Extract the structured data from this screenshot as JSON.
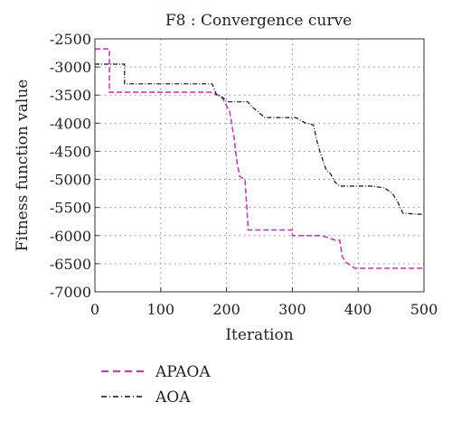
{
  "chart_data": {
    "type": "line",
    "title": "F8 : Convergence curve",
    "xlabel": "Iteration",
    "ylabel": "Fitness function value",
    "xlim": [
      0,
      500
    ],
    "ylim": [
      -7000,
      -2500
    ],
    "xticks": [
      0,
      100,
      200,
      300,
      400,
      500
    ],
    "yticks": [
      -2500,
      -3000,
      -3500,
      -4000,
      -4500,
      -5000,
      -5500,
      -6000,
      -6500,
      -7000
    ],
    "grid": true,
    "legend_position": "bottom-left, below the plot",
    "series": [
      {
        "name": "APAOA",
        "color": "#c040b0",
        "style": "dashed",
        "points": [
          [
            0,
            -2680
          ],
          [
            22,
            -2680
          ],
          [
            22,
            -3450
          ],
          [
            175,
            -3450
          ],
          [
            192,
            -3520
          ],
          [
            205,
            -3800
          ],
          [
            212,
            -4300
          ],
          [
            216,
            -4700
          ],
          [
            220,
            -4950
          ],
          [
            228,
            -5000
          ],
          [
            233,
            -5900
          ],
          [
            300,
            -5900
          ],
          [
            300,
            -6000
          ],
          [
            345,
            -6000
          ],
          [
            365,
            -6080
          ],
          [
            372,
            -6080
          ],
          [
            376,
            -6380
          ],
          [
            382,
            -6480
          ],
          [
            395,
            -6580
          ],
          [
            500,
            -6580
          ]
        ]
      },
      {
        "name": "AOA",
        "color": "#111111",
        "style": "dashdot",
        "points": [
          [
            0,
            -2950
          ],
          [
            45,
            -2950
          ],
          [
            45,
            -3300
          ],
          [
            178,
            -3300
          ],
          [
            185,
            -3500
          ],
          [
            195,
            -3550
          ],
          [
            200,
            -3620
          ],
          [
            232,
            -3620
          ],
          [
            240,
            -3720
          ],
          [
            258,
            -3900
          ],
          [
            305,
            -3900
          ],
          [
            320,
            -4000
          ],
          [
            332,
            -4030
          ],
          [
            338,
            -4350
          ],
          [
            343,
            -4550
          ],
          [
            352,
            -4850
          ],
          [
            358,
            -4900
          ],
          [
            365,
            -5050
          ],
          [
            372,
            -5120
          ],
          [
            420,
            -5120
          ],
          [
            440,
            -5150
          ],
          [
            452,
            -5250
          ],
          [
            460,
            -5400
          ],
          [
            468,
            -5600
          ],
          [
            490,
            -5620
          ],
          [
            500,
            -5620
          ]
        ]
      }
    ]
  }
}
